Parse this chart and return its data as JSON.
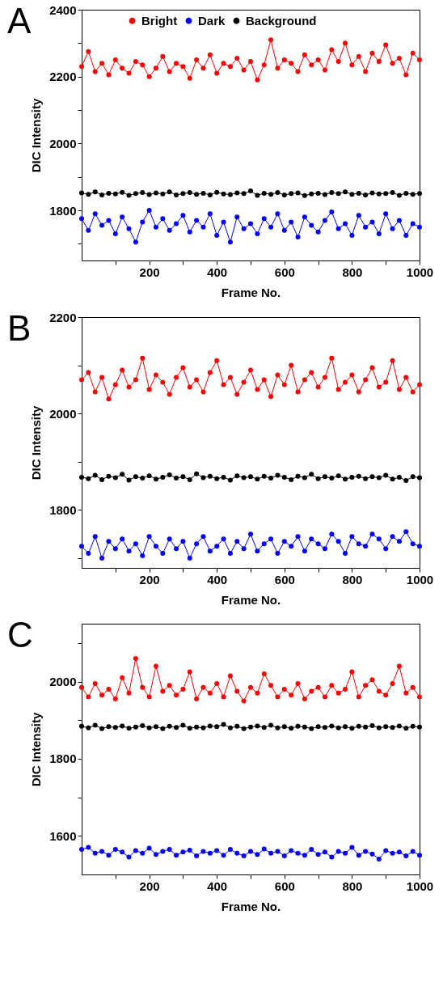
{
  "chart_data": [
    {
      "type": "line",
      "annotations": [
        "A"
      ],
      "xlabel": "Frame No.",
      "ylabel": "DIC Intensity",
      "legend": "top",
      "marker": "circle",
      "x": [
        0,
        20,
        40,
        60,
        80,
        100,
        120,
        140,
        160,
        180,
        200,
        220,
        240,
        260,
        280,
        300,
        320,
        340,
        360,
        380,
        400,
        420,
        440,
        460,
        480,
        500,
        520,
        540,
        560,
        580,
        600,
        620,
        640,
        660,
        680,
        700,
        720,
        740,
        760,
        780,
        800,
        820,
        840,
        860,
        880,
        900,
        920,
        940,
        960,
        980,
        1000
      ],
      "xlim": [
        0,
        1000
      ],
      "ylim": [
        1650,
        2400
      ],
      "xticks": [
        {
          "value": 100,
          "label": null
        },
        200,
        {
          "value": 300,
          "label": null
        },
        400,
        {
          "value": 500,
          "label": null
        },
        600,
        {
          "value": 700,
          "label": null
        },
        800,
        {
          "value": 900,
          "label": null
        },
        1000
      ],
      "yticks": [
        {
          "value": 1700,
          "label": null
        },
        1800,
        {
          "value": 1900,
          "label": null
        },
        2000,
        {
          "value": 2100,
          "label": null
        },
        2200,
        {
          "value": 2300,
          "label": null
        },
        2400
      ],
      "series": [
        {
          "name": "Bright",
          "color": "#ff0000",
          "values": [
            2230,
            2275,
            2215,
            2240,
            2205,
            2250,
            2225,
            2210,
            2245,
            2235,
            2200,
            2225,
            2260,
            2215,
            2240,
            2230,
            2195,
            2250,
            2225,
            2265,
            2210,
            2240,
            2230,
            2255,
            2220,
            2245,
            2190,
            2235,
            2310,
            2225,
            2250,
            2240,
            2215,
            2265,
            2235,
            2250,
            2220,
            2280,
            2245,
            2300,
            2235,
            2260,
            2215,
            2270,
            2245,
            2295,
            2240,
            2255,
            2205,
            2270,
            2250
          ]
        },
        {
          "name": "Dark",
          "color": "#0000ff",
          "values": [
            1775,
            1740,
            1790,
            1755,
            1770,
            1730,
            1780,
            1745,
            1705,
            1765,
            1800,
            1750,
            1775,
            1740,
            1760,
            1785,
            1735,
            1770,
            1750,
            1790,
            1725,
            1765,
            1705,
            1780,
            1745,
            1760,
            1730,
            1775,
            1750,
            1790,
            1740,
            1765,
            1720,
            1780,
            1755,
            1735,
            1770,
            1795,
            1745,
            1760,
            1725,
            1785,
            1750,
            1765,
            1730,
            1790,
            1745,
            1770,
            1725,
            1760,
            1750
          ]
        },
        {
          "name": "Background",
          "color": "#000000",
          "values": [
            1852,
            1848,
            1855,
            1846,
            1851,
            1849,
            1854,
            1845,
            1850,
            1853,
            1847,
            1852,
            1849,
            1855,
            1846,
            1850,
            1853,
            1848,
            1851,
            1846,
            1854,
            1849,
            1847,
            1852,
            1850,
            1858,
            1845,
            1851,
            1848,
            1853,
            1846,
            1850,
            1852,
            1844,
            1849,
            1851,
            1847,
            1853,
            1850,
            1855,
            1848,
            1851,
            1846,
            1852,
            1849,
            1850,
            1853,
            1845,
            1851,
            1848,
            1850
          ]
        }
      ]
    },
    {
      "type": "line",
      "annotations": [
        "B"
      ],
      "xlabel": "Frame No.",
      "ylabel": "DIC Intensity",
      "legend": "top",
      "marker": "circle",
      "x": [
        0,
        20,
        40,
        60,
        80,
        100,
        120,
        140,
        160,
        180,
        200,
        220,
        240,
        260,
        280,
        300,
        320,
        340,
        360,
        380,
        400,
        420,
        440,
        460,
        480,
        500,
        520,
        540,
        560,
        580,
        600,
        620,
        640,
        660,
        680,
        700,
        720,
        740,
        760,
        780,
        800,
        820,
        840,
        860,
        880,
        900,
        920,
        940,
        960,
        980,
        1000
      ],
      "xlim": [
        0,
        1000
      ],
      "ylim": [
        1680,
        2200
      ],
      "xticks": [
        {
          "value": 100,
          "label": null
        },
        200,
        {
          "value": 300,
          "label": null
        },
        400,
        {
          "value": 500,
          "label": null
        },
        600,
        {
          "value": 700,
          "label": null
        },
        800,
        {
          "value": 900,
          "label": null
        },
        1000
      ],
      "yticks": [
        {
          "value": 1700,
          "label": null
        },
        1800,
        {
          "value": 1900,
          "label": null
        },
        2000,
        {
          "value": 2100,
          "label": null
        },
        2200
      ],
      "series": [
        {
          "name": "Bright",
          "color": "#ff0000",
          "values": [
            2070,
            2085,
            2045,
            2075,
            2030,
            2060,
            2090,
            2055,
            2070,
            2115,
            2050,
            2080,
            2065,
            2040,
            2075,
            2095,
            2055,
            2070,
            2045,
            2085,
            2110,
            2060,
            2075,
            2040,
            2065,
            2090,
            2050,
            2070,
            2035,
            2080,
            2060,
            2100,
            2045,
            2070,
            2085,
            2055,
            2075,
            2115,
            2050,
            2065,
            2080,
            2045,
            2070,
            2095,
            2055,
            2065,
            2110,
            2050,
            2075,
            2045,
            2060
          ]
        },
        {
          "name": "Dark",
          "color": "#0000ff",
          "values": [
            1725,
            1710,
            1745,
            1700,
            1735,
            1720,
            1740,
            1715,
            1730,
            1705,
            1745,
            1725,
            1710,
            1740,
            1720,
            1735,
            1700,
            1730,
            1745,
            1715,
            1725,
            1740,
            1710,
            1735,
            1720,
            1750,
            1715,
            1730,
            1740,
            1710,
            1735,
            1725,
            1745,
            1715,
            1740,
            1730,
            1720,
            1750,
            1735,
            1710,
            1745,
            1730,
            1725,
            1750,
            1740,
            1720,
            1745,
            1735,
            1755,
            1730,
            1725
          ]
        },
        {
          "name": "Background",
          "color": "#000000",
          "values": [
            1868,
            1865,
            1872,
            1863,
            1870,
            1867,
            1874,
            1862,
            1869,
            1866,
            1871,
            1864,
            1868,
            1873,
            1866,
            1869,
            1863,
            1875,
            1867,
            1870,
            1865,
            1868,
            1862,
            1871,
            1867,
            1869,
            1864,
            1870,
            1866,
            1872,
            1868,
            1863,
            1870,
            1867,
            1874,
            1865,
            1869,
            1866,
            1871,
            1864,
            1868,
            1870,
            1865,
            1869,
            1867,
            1872,
            1864,
            1868,
            1861,
            1869,
            1867
          ]
        }
      ]
    },
    {
      "type": "line",
      "annotations": [
        "C"
      ],
      "xlabel": "Frame No.",
      "ylabel": "DIC Intensity",
      "legend": "top",
      "marker": "circle",
      "x": [
        0,
        20,
        40,
        60,
        80,
        100,
        120,
        140,
        160,
        180,
        200,
        220,
        240,
        260,
        280,
        300,
        320,
        340,
        360,
        380,
        400,
        420,
        440,
        460,
        480,
        500,
        520,
        540,
        560,
        580,
        600,
        620,
        640,
        660,
        680,
        700,
        720,
        740,
        760,
        780,
        800,
        820,
        840,
        860,
        880,
        900,
        920,
        940,
        960,
        980,
        1000
      ],
      "xlim": [
        0,
        1000
      ],
      "ylim": [
        1500,
        2150
      ],
      "xticks": [
        {
          "value": 100,
          "label": null
        },
        200,
        {
          "value": 300,
          "label": null
        },
        400,
        {
          "value": 500,
          "label": null
        },
        600,
        {
          "value": 700,
          "label": null
        },
        800,
        {
          "value": 900,
          "label": null
        },
        1000
      ],
      "yticks": [
        1600,
        {
          "value": 1700,
          "label": null
        },
        1800,
        {
          "value": 1900,
          "label": null
        },
        2000,
        {
          "value": 2100,
          "label": null
        }
      ],
      "series": [
        {
          "name": "Bright",
          "color": "#ff0000",
          "values": [
            1985,
            1960,
            1995,
            1965,
            1980,
            1955,
            2010,
            1970,
            2060,
            1985,
            1960,
            2040,
            1975,
            1990,
            1965,
            1980,
            2025,
            1955,
            1985,
            1970,
            1995,
            1960,
            2015,
            1975,
            1950,
            1985,
            1970,
            2020,
            1990,
            1960,
            1980,
            1965,
            1995,
            1955,
            1975,
            1985,
            1960,
            1990,
            1970,
            1980,
            2025,
            1960,
            1990,
            2005,
            1975,
            1965,
            1995,
            2040,
            1970,
            1985,
            1960
          ]
        },
        {
          "name": "Dark",
          "color": "#0000ff",
          "values": [
            1565,
            1570,
            1555,
            1560,
            1550,
            1565,
            1558,
            1545,
            1562,
            1555,
            1568,
            1552,
            1560,
            1565,
            1550,
            1558,
            1563,
            1548,
            1560,
            1555,
            1562,
            1550,
            1565,
            1555,
            1548,
            1560,
            1552,
            1566,
            1555,
            1560,
            1548,
            1562,
            1555,
            1550,
            1565,
            1552,
            1558,
            1545,
            1560,
            1555,
            1570,
            1550,
            1560,
            1553,
            1540,
            1562,
            1555,
            1558,
            1548,
            1560,
            1550
          ]
        },
        {
          "name": "Background",
          "color": "#000000",
          "values": [
            1884,
            1880,
            1887,
            1878,
            1883,
            1881,
            1885,
            1879,
            1882,
            1886,
            1880,
            1883,
            1878,
            1884,
            1881,
            1887,
            1879,
            1882,
            1880,
            1885,
            1883,
            1889,
            1880,
            1884,
            1878,
            1882,
            1885,
            1881,
            1887,
            1880,
            1883,
            1879,
            1884,
            1882,
            1878,
            1883,
            1881,
            1885,
            1880,
            1883,
            1879,
            1884,
            1882,
            1886,
            1880,
            1883,
            1881,
            1885,
            1879,
            1884,
            1882
          ]
        }
      ]
    }
  ]
}
